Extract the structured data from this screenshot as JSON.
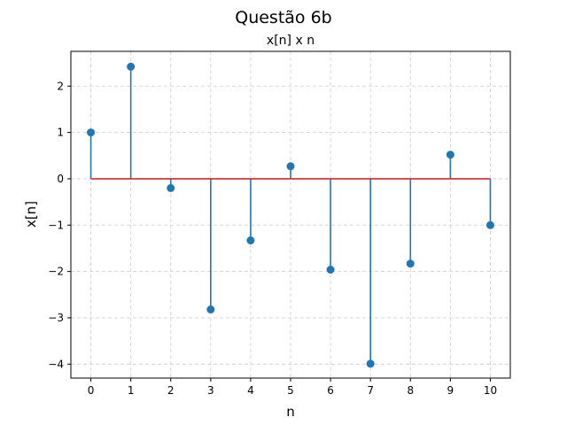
{
  "chart_data": {
    "type": "stem",
    "suptitle": "Questão 6b",
    "title": "x[n] x n",
    "xlabel": "n",
    "ylabel": "x[n]",
    "x": [
      0,
      1,
      2,
      3,
      4,
      5,
      6,
      7,
      8,
      9,
      10
    ],
    "values": [
      1.0,
      2.42,
      -0.2,
      -2.82,
      -1.33,
      0.27,
      -1.96,
      -3.99,
      -1.83,
      0.52,
      -1.0
    ],
    "xlim": [
      -0.5,
      10.5
    ],
    "ylim": [
      -4.3,
      2.75
    ],
    "xticks": [
      0,
      1,
      2,
      3,
      4,
      5,
      6,
      7,
      8,
      9,
      10
    ],
    "yticks": [
      2,
      1,
      0,
      -1,
      -2,
      -3,
      -4
    ],
    "ytick_labels": [
      "2",
      "1",
      "0",
      "−1",
      "−2",
      "−3",
      "−4"
    ],
    "grid": true,
    "colors": {
      "stem": "#1f77b4",
      "baseline": "#d62728",
      "grid": "#cccccc"
    }
  }
}
